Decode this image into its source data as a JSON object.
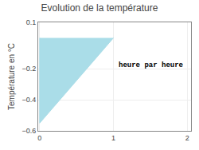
{
  "chart_data": {
    "type": "area",
    "title": "Evolution de la température",
    "ylabel": "Température en °C",
    "x": [
      0,
      0,
      1
    ],
    "values": [
      0,
      -0.55,
      0
    ],
    "color": "#aadde8",
    "xlim": [
      -0.02,
      2.05
    ],
    "xticks": [
      0,
      1,
      2
    ],
    "ylim": [
      -0.6,
      0.1
    ],
    "yticks": [
      0.1,
      -0.2,
      -0.4,
      -0.6
    ],
    "grid": true,
    "annotations": [
      {
        "text": "heure par heure",
        "x": 1.05,
        "y": -0.18
      }
    ]
  }
}
